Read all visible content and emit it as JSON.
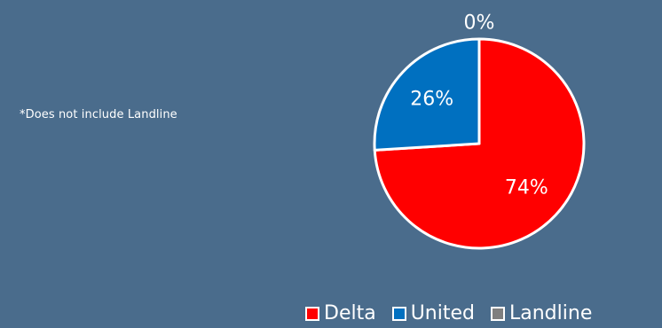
{
  "footnote": "*Does not include Landline",
  "chart_data": {
    "type": "pie",
    "categories": [
      "Delta",
      "United",
      "Landline"
    ],
    "values": [
      74,
      26,
      0
    ],
    "data_labels": [
      "74%",
      "26%",
      "0%"
    ],
    "colors": [
      "#ff0000",
      "#0070c0",
      "#7f7f7f"
    ],
    "legend_position": "bottom"
  }
}
